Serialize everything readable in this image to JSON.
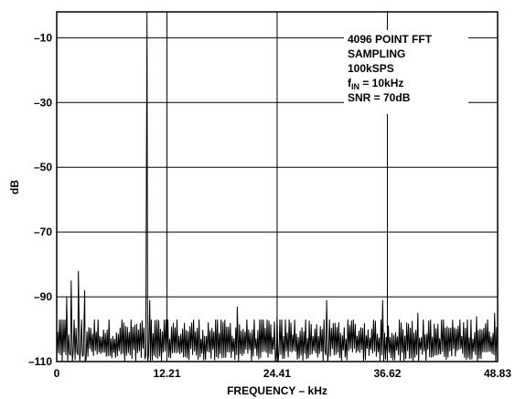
{
  "chart_data": {
    "type": "line",
    "title": "",
    "xlabel": "FREQUENCY – kHz",
    "ylabel": "dB",
    "xlim": [
      0,
      48.83
    ],
    "ylim": [
      -110,
      -2
    ],
    "grid": true,
    "x_ticks": [
      0,
      12.21,
      24.41,
      36.62,
      48.83
    ],
    "x_tick_labels": [
      "0",
      "12.21",
      "24.41",
      "36.62",
      "48.83"
    ],
    "y_ticks": [
      -10,
      -30,
      -50,
      -70,
      -90,
      -110
    ],
    "y_tick_labels": [
      "–10",
      "–30",
      "–50",
      "–70",
      "–90",
      "–110"
    ],
    "annotation": {
      "lines": [
        "4096 POINT FFT",
        "SAMPLING",
        "100kSPS"
      ],
      "fin_prefix": "f",
      "fin_sub": "IN",
      "fin_value": " = 10kHz",
      "snr": "SNR = 70dB"
    },
    "series": [
      {
        "peaks": [
          {
            "x": 0.5,
            "y": -97
          },
          {
            "x": 1.6,
            "y": -85
          },
          {
            "x": 2.4,
            "y": -82
          },
          {
            "x": 1.1,
            "y": -90
          },
          {
            "x": 3.1,
            "y": -88
          },
          {
            "x": 10.0,
            "y": -2
          },
          {
            "x": 10.3,
            "y": -91
          },
          {
            "x": 20.0,
            "y": -93
          },
          {
            "x": 24.4,
            "y": -96
          },
          {
            "x": 29.9,
            "y": -91
          },
          {
            "x": 36.1,
            "y": -91
          },
          {
            "x": 40.0,
            "y": -95
          },
          {
            "x": 46.5,
            "y": -96
          },
          {
            "x": 48.5,
            "y": -95
          }
        ],
        "noise_floor": [
          -110,
          -97
        ]
      }
    ]
  }
}
